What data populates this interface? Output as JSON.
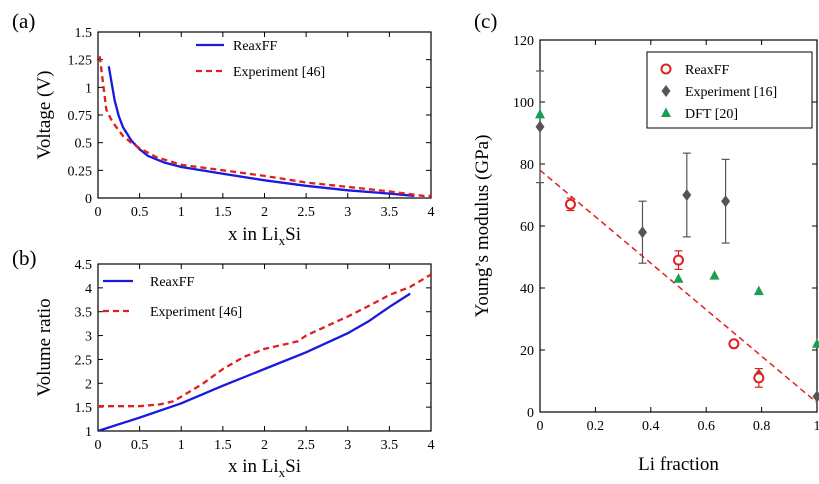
{
  "chart_data": [
    {
      "type": "line",
      "panel_label": "(a)",
      "xlabel": "x in Li",
      "xlabel_sub": "x",
      "xlabel_suffix": "Si",
      "ylabel": "Voltage (V)",
      "xlim": [
        0,
        4
      ],
      "ylim": [
        0,
        1.5
      ],
      "xticks": [
        "0",
        "0.5",
        "1",
        "1.5",
        "2",
        "2.5",
        "3",
        "3.5",
        "4"
      ],
      "yticks": [
        "0",
        "0.25",
        "0.5",
        "0.75",
        "1",
        "1.25",
        "1.5"
      ],
      "legend_position": "top-right",
      "series": [
        {
          "name": "ReaxFF",
          "style": "solid",
          "color": "#1a1adc",
          "x": [
            0.13,
            0.15,
            0.2,
            0.25,
            0.3,
            0.4,
            0.5,
            0.6,
            0.8,
            1.0,
            1.5,
            2.0,
            2.5,
            3.0,
            3.5,
            3.8
          ],
          "y": [
            1.19,
            1.1,
            0.88,
            0.74,
            0.64,
            0.52,
            0.44,
            0.38,
            0.32,
            0.28,
            0.22,
            0.16,
            0.11,
            0.07,
            0.04,
            0.02
          ]
        },
        {
          "name": "Experiment [46]",
          "style": "dashed",
          "color": "#e02020",
          "x": [
            0.02,
            0.05,
            0.1,
            0.15,
            0.2,
            0.3,
            0.4,
            0.5,
            0.7,
            1.0,
            1.5,
            2.0,
            2.5,
            3.0,
            3.5,
            3.9,
            4.0
          ],
          "y": [
            1.28,
            1.1,
            0.8,
            0.72,
            0.66,
            0.56,
            0.5,
            0.45,
            0.37,
            0.3,
            0.25,
            0.2,
            0.14,
            0.1,
            0.06,
            0.02,
            0.02
          ]
        }
      ]
    },
    {
      "type": "line",
      "panel_label": "(b)",
      "xlabel": "x in Li",
      "xlabel_sub": "x",
      "xlabel_suffix": "Si",
      "ylabel": "Volume ratio",
      "xlim": [
        0,
        4
      ],
      "ylim": [
        1,
        4.5
      ],
      "xticks": [
        "0",
        "0.5",
        "1",
        "1.5",
        "2",
        "2.5",
        "3",
        "3.5",
        "4"
      ],
      "yticks": [
        "1",
        "1.5",
        "2",
        "2.5",
        "3",
        "3.5",
        "4",
        "4.5"
      ],
      "legend_position": "top-left",
      "series": [
        {
          "name": "ReaxFF",
          "style": "solid",
          "color": "#1a1adc",
          "x": [
            0,
            0.5,
            1.0,
            1.5,
            2.0,
            2.5,
            3.0,
            3.25,
            3.5,
            3.75
          ],
          "y": [
            1.0,
            1.28,
            1.58,
            1.95,
            2.3,
            2.65,
            3.05,
            3.3,
            3.6,
            3.88
          ]
        },
        {
          "name": "Experiment [46]",
          "style": "dashed",
          "color": "#e02020",
          "x": [
            0,
            0.25,
            0.5,
            0.75,
            0.9,
            1.0,
            1.25,
            1.5,
            1.75,
            2.0,
            2.25,
            2.4,
            2.5,
            2.75,
            3.0,
            3.25,
            3.5,
            3.75,
            4.0
          ],
          "y": [
            1.52,
            1.52,
            1.52,
            1.56,
            1.62,
            1.72,
            1.98,
            2.3,
            2.55,
            2.72,
            2.82,
            2.88,
            3.0,
            3.2,
            3.4,
            3.62,
            3.85,
            4.02,
            4.28
          ]
        }
      ]
    },
    {
      "type": "scatter",
      "panel_label": "(c)",
      "xlabel": "Li fraction",
      "ylabel": "Young’s modulus (GPa)",
      "xlim": [
        0,
        1
      ],
      "ylim": [
        0,
        120
      ],
      "xticks": [
        "0",
        "0.2",
        "0.4",
        "0.6",
        "0.8",
        "1"
      ],
      "yticks": [
        "0",
        "20",
        "40",
        "60",
        "80",
        "100",
        "120"
      ],
      "legend_position": "top-right",
      "fit_line": {
        "style": "dashed",
        "color": "#e02020",
        "x": [
          0,
          1
        ],
        "y": [
          78,
          3
        ]
      },
      "series": [
        {
          "name": "ReaxFF",
          "marker": "open-circle",
          "color": "#e02020",
          "points": [
            {
              "x": 0.11,
              "y": 67,
              "err": 2
            },
            {
              "x": 0.5,
              "y": 49,
              "err": 3
            },
            {
              "x": 0.7,
              "y": 22,
              "err": 1
            },
            {
              "x": 0.79,
              "y": 11,
              "err": 3
            }
          ]
        },
        {
          "name": "Experiment [16]",
          "marker": "diamond",
          "color": "#555555",
          "points": [
            {
              "x": 0.0,
              "y": 92,
              "err": 18
            },
            {
              "x": 0.37,
              "y": 58,
              "err": 10
            },
            {
              "x": 0.53,
              "y": 70,
              "err": 13.5
            },
            {
              "x": 0.67,
              "y": 68,
              "err": 13.5
            },
            {
              "x": 0.79,
              "y": 12,
              "err": 0
            },
            {
              "x": 1.0,
              "y": 5,
              "err": 0
            }
          ]
        },
        {
          "name": "DFT [20]",
          "marker": "triangle",
          "color": "#1a9e50",
          "points": [
            {
              "x": 0.0,
              "y": 96
            },
            {
              "x": 0.5,
              "y": 43
            },
            {
              "x": 0.63,
              "y": 44
            },
            {
              "x": 0.79,
              "y": 39
            },
            {
              "x": 1.0,
              "y": 22
            }
          ]
        }
      ]
    }
  ]
}
